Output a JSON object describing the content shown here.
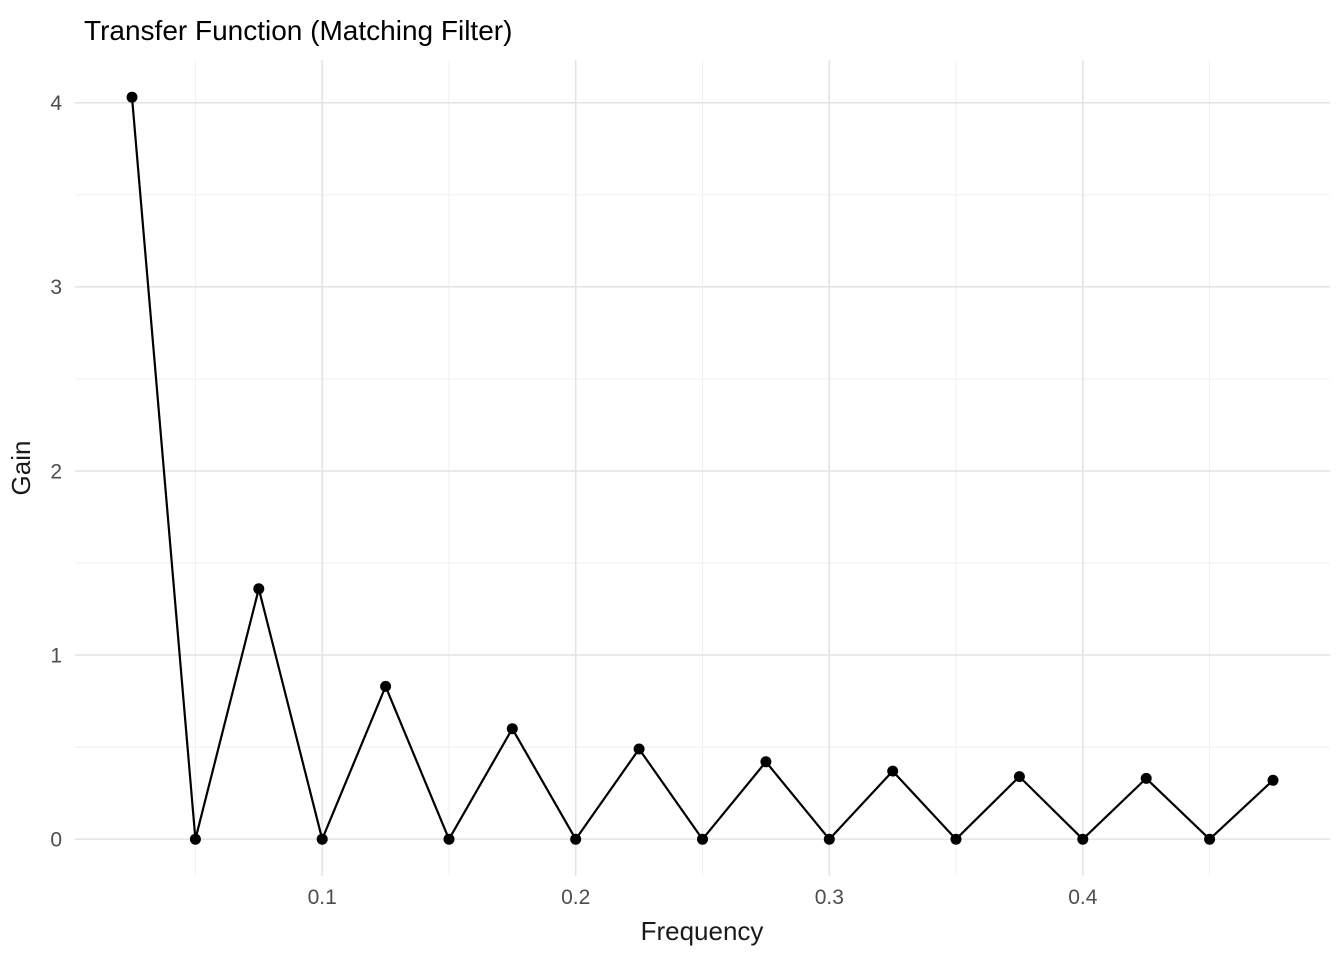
{
  "chart_data": {
    "type": "line",
    "title": "Transfer Function (Matching Filter)",
    "xlabel": "Frequency",
    "ylabel": "Gain",
    "x": [
      0.025,
      0.05,
      0.075,
      0.1,
      0.125,
      0.15,
      0.175,
      0.2,
      0.225,
      0.25,
      0.275,
      0.3,
      0.325,
      0.35,
      0.375,
      0.4,
      0.425,
      0.45,
      0.475
    ],
    "y": [
      4.03,
      0,
      1.36,
      0,
      0.83,
      0,
      0.6,
      0,
      0.49,
      0,
      0.42,
      0,
      0.37,
      0,
      0.34,
      0,
      0.33,
      0,
      0.32
    ],
    "xlim": [
      0.0025,
      0.4975
    ],
    "ylim": [
      -0.2,
      4.232
    ],
    "x_major_breaks": [
      0.1,
      0.2,
      0.3,
      0.4
    ],
    "x_tick_labels": [
      "0.1",
      "0.2",
      "0.3",
      "0.4"
    ],
    "x_minor_breaks": [
      0.05,
      0.15,
      0.25,
      0.35,
      0.45
    ],
    "y_major_breaks": [
      0,
      1,
      2,
      3,
      4
    ],
    "y_tick_labels": [
      "0",
      "1",
      "2",
      "3",
      "4"
    ],
    "y_minor_breaks": [
      0.5,
      1.5,
      2.5,
      3.5
    ],
    "grid": true,
    "legend": "none",
    "line_color": "#000000",
    "point_color": "#000000",
    "grid_major_color": "#e3e3e3",
    "grid_minor_color": "#efefef",
    "background_color": "#ffffff",
    "tick_label_color": "#4d4d4d",
    "axis_title_color": "#1a1a1a",
    "title_color": "#000000"
  }
}
